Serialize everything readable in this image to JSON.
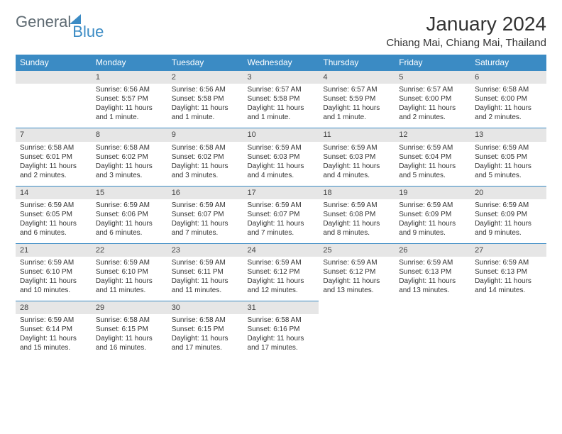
{
  "logo": {
    "part1": "General",
    "part2": "Blue"
  },
  "title": "January 2024",
  "location": "Chiang Mai, Chiang Mai, Thailand",
  "colors": {
    "accent": "#3b8bc4",
    "dayHeaderBg": "#e6e6e6",
    "text": "#333333",
    "logoGray": "#5e6a72"
  },
  "daysOfWeek": [
    "Sunday",
    "Monday",
    "Tuesday",
    "Wednesday",
    "Thursday",
    "Friday",
    "Saturday"
  ],
  "startOffset": 1,
  "days": [
    {
      "n": 1,
      "sr": "6:56 AM",
      "ss": "5:57 PM",
      "dl": "11 hours and 1 minute."
    },
    {
      "n": 2,
      "sr": "6:56 AM",
      "ss": "5:58 PM",
      "dl": "11 hours and 1 minute."
    },
    {
      "n": 3,
      "sr": "6:57 AM",
      "ss": "5:58 PM",
      "dl": "11 hours and 1 minute."
    },
    {
      "n": 4,
      "sr": "6:57 AM",
      "ss": "5:59 PM",
      "dl": "11 hours and 1 minute."
    },
    {
      "n": 5,
      "sr": "6:57 AM",
      "ss": "6:00 PM",
      "dl": "11 hours and 2 minutes."
    },
    {
      "n": 6,
      "sr": "6:58 AM",
      "ss": "6:00 PM",
      "dl": "11 hours and 2 minutes."
    },
    {
      "n": 7,
      "sr": "6:58 AM",
      "ss": "6:01 PM",
      "dl": "11 hours and 2 minutes."
    },
    {
      "n": 8,
      "sr": "6:58 AM",
      "ss": "6:02 PM",
      "dl": "11 hours and 3 minutes."
    },
    {
      "n": 9,
      "sr": "6:58 AM",
      "ss": "6:02 PM",
      "dl": "11 hours and 3 minutes."
    },
    {
      "n": 10,
      "sr": "6:59 AM",
      "ss": "6:03 PM",
      "dl": "11 hours and 4 minutes."
    },
    {
      "n": 11,
      "sr": "6:59 AM",
      "ss": "6:03 PM",
      "dl": "11 hours and 4 minutes."
    },
    {
      "n": 12,
      "sr": "6:59 AM",
      "ss": "6:04 PM",
      "dl": "11 hours and 5 minutes."
    },
    {
      "n": 13,
      "sr": "6:59 AM",
      "ss": "6:05 PM",
      "dl": "11 hours and 5 minutes."
    },
    {
      "n": 14,
      "sr": "6:59 AM",
      "ss": "6:05 PM",
      "dl": "11 hours and 6 minutes."
    },
    {
      "n": 15,
      "sr": "6:59 AM",
      "ss": "6:06 PM",
      "dl": "11 hours and 6 minutes."
    },
    {
      "n": 16,
      "sr": "6:59 AM",
      "ss": "6:07 PM",
      "dl": "11 hours and 7 minutes."
    },
    {
      "n": 17,
      "sr": "6:59 AM",
      "ss": "6:07 PM",
      "dl": "11 hours and 7 minutes."
    },
    {
      "n": 18,
      "sr": "6:59 AM",
      "ss": "6:08 PM",
      "dl": "11 hours and 8 minutes."
    },
    {
      "n": 19,
      "sr": "6:59 AM",
      "ss": "6:09 PM",
      "dl": "11 hours and 9 minutes."
    },
    {
      "n": 20,
      "sr": "6:59 AM",
      "ss": "6:09 PM",
      "dl": "11 hours and 9 minutes."
    },
    {
      "n": 21,
      "sr": "6:59 AM",
      "ss": "6:10 PM",
      "dl": "11 hours and 10 minutes."
    },
    {
      "n": 22,
      "sr": "6:59 AM",
      "ss": "6:10 PM",
      "dl": "11 hours and 11 minutes."
    },
    {
      "n": 23,
      "sr": "6:59 AM",
      "ss": "6:11 PM",
      "dl": "11 hours and 11 minutes."
    },
    {
      "n": 24,
      "sr": "6:59 AM",
      "ss": "6:12 PM",
      "dl": "11 hours and 12 minutes."
    },
    {
      "n": 25,
      "sr": "6:59 AM",
      "ss": "6:12 PM",
      "dl": "11 hours and 13 minutes."
    },
    {
      "n": 26,
      "sr": "6:59 AM",
      "ss": "6:13 PM",
      "dl": "11 hours and 13 minutes."
    },
    {
      "n": 27,
      "sr": "6:59 AM",
      "ss": "6:13 PM",
      "dl": "11 hours and 14 minutes."
    },
    {
      "n": 28,
      "sr": "6:59 AM",
      "ss": "6:14 PM",
      "dl": "11 hours and 15 minutes."
    },
    {
      "n": 29,
      "sr": "6:58 AM",
      "ss": "6:15 PM",
      "dl": "11 hours and 16 minutes."
    },
    {
      "n": 30,
      "sr": "6:58 AM",
      "ss": "6:15 PM",
      "dl": "11 hours and 17 minutes."
    },
    {
      "n": 31,
      "sr": "6:58 AM",
      "ss": "6:16 PM",
      "dl": "11 hours and 17 minutes."
    }
  ],
  "labels": {
    "sunrise": "Sunrise:",
    "sunset": "Sunset:",
    "daylight": "Daylight:"
  }
}
